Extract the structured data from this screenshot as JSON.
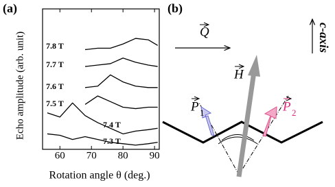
{
  "panel_a": {
    "label": "(a)"
  },
  "panel_b": {
    "label": "(b)"
  },
  "chart_data": {
    "type": "line",
    "x_label": "Rotation angle θ (deg.)",
    "y_label": "Echo amplitude (arb. unit)",
    "x": [
      56,
      60,
      64,
      68,
      72,
      76,
      80,
      84,
      88,
      91
    ],
    "xlim": [
      54.5,
      91.5
    ],
    "xticks": [
      60,
      70,
      80,
      90
    ],
    "ylim": [
      0,
      100
    ],
    "color": "#000000",
    "series": [
      {
        "name": "7.8 T",
        "values": [
          null,
          null,
          null,
          71,
          72,
          72,
          75,
          79,
          78,
          74
        ]
      },
      {
        "name": "7.7 T",
        "values": [
          null,
          null,
          null,
          59,
          60,
          61,
          65,
          62,
          60,
          59
        ]
      },
      {
        "name": "7.6 T",
        "values": [
          null,
          null,
          null,
          44,
          45,
          53,
          48,
          45,
          44,
          44
        ]
      },
      {
        "name": "7.5 T",
        "values": [
          null,
          null,
          null,
          32,
          38,
          34,
          30,
          29,
          30,
          30
        ]
      },
      {
        "name": "7.4 T",
        "values": [
          26,
          23,
          33,
          24,
          19,
          15,
          11,
          13,
          14,
          15
        ]
      },
      {
        "name": "7.3 T",
        "values": [
          11,
          10,
          7,
          9,
          7,
          5,
          4,
          3,
          4,
          5
        ]
      }
    ]
  },
  "diagram": {
    "q": "Q",
    "h": "H",
    "p1": {
      "letter": "P",
      "sub": "1"
    },
    "p2": {
      "letter": "P",
      "sub": "2"
    },
    "c_axis": "c-axis"
  }
}
